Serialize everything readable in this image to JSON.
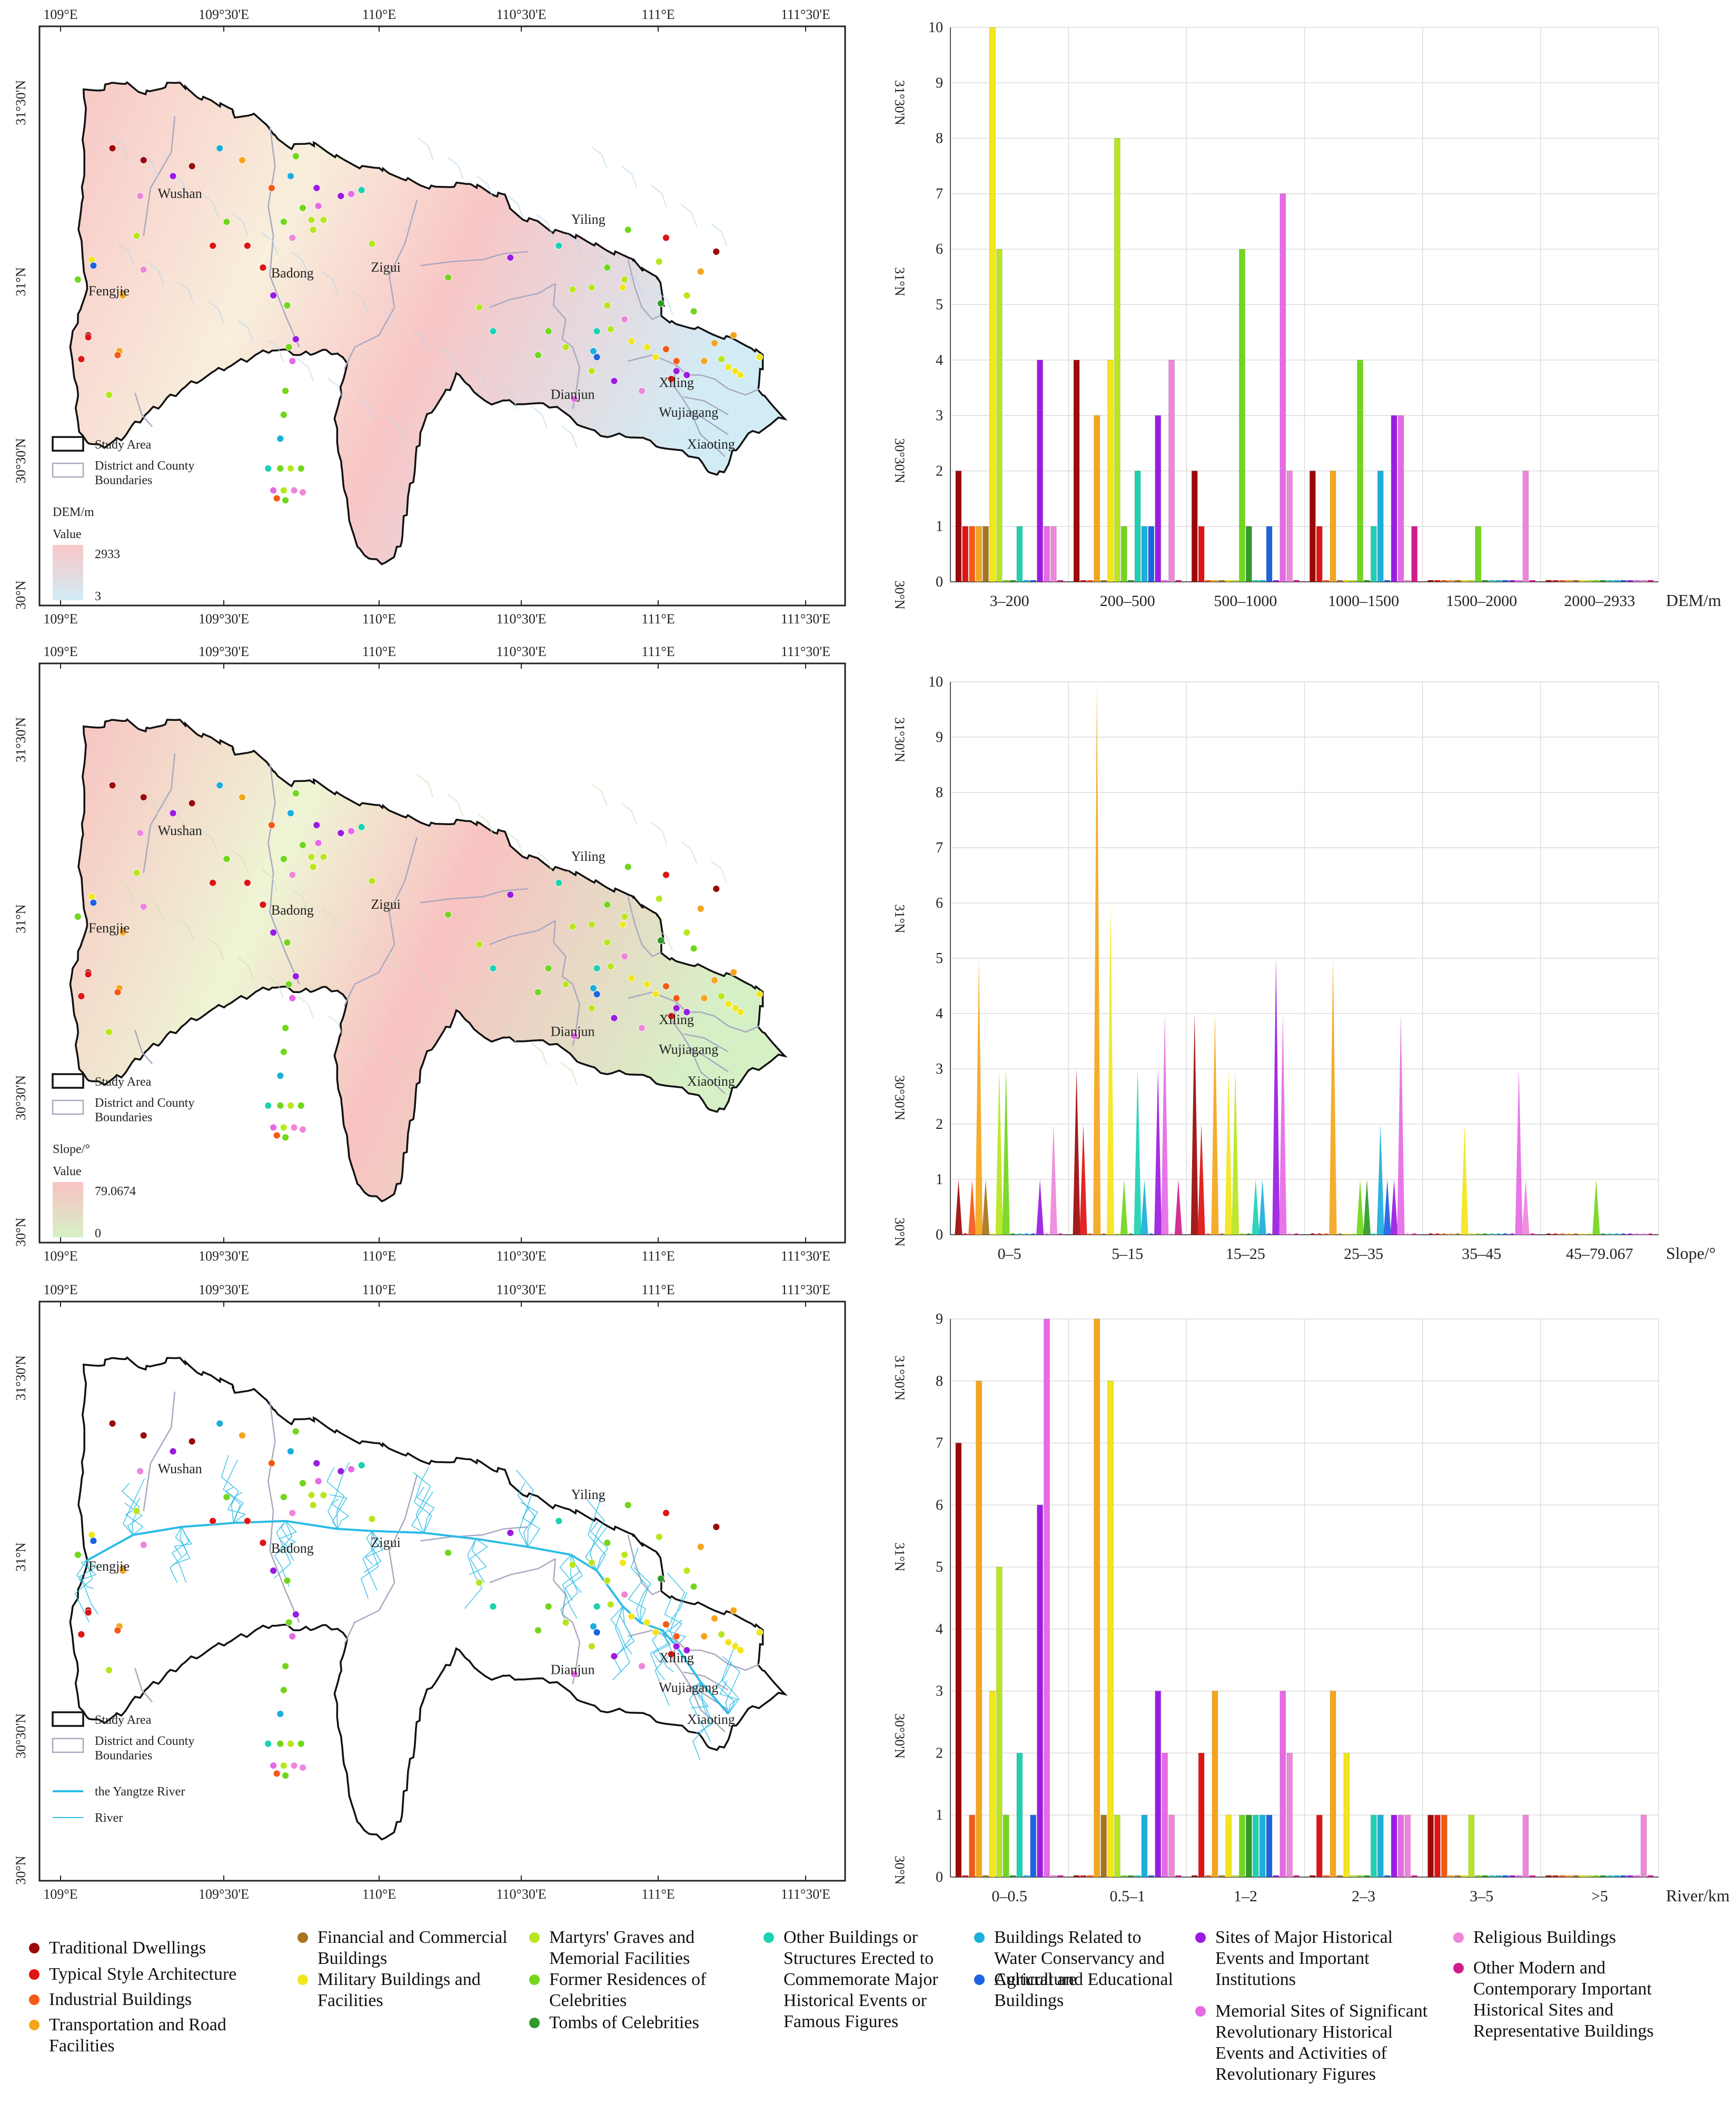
{
  "categories": [
    {
      "name": "Traditional Dwellings",
      "color": "#9b0a0a"
    },
    {
      "name": "Typical Style Architecture",
      "color": "#e01414"
    },
    {
      "name": "Industrial Buildings",
      "color": "#f45a14"
    },
    {
      "name": "Transportation and Road Facilities",
      "color": "#f5a51c"
    },
    {
      "name": "Financial and Commercial Buildings",
      "color": "#a8741c"
    },
    {
      "name": "Military Buildings and Facilities",
      "color": "#f2e61c"
    },
    {
      "name": "Martyrs' Graves and Memorial Facilities",
      "color": "#b8e61e"
    },
    {
      "name": "Former Residences of Celebrities",
      "color": "#72d61c"
    },
    {
      "name": "Tombs of Celebrities",
      "color": "#2f9a28"
    },
    {
      "name": "Other Buildings or Structures Erected to Commemorate Major Historical Events or Famous Figures",
      "color": "#1cd2b2"
    },
    {
      "name": "Buildings Related to Water Conservancy and Agriculture",
      "color": "#1caedc"
    },
    {
      "name": "Cultural and Educational Buildings",
      "color": "#1c62e2"
    },
    {
      "name": "Sites of Major Historical Events and Important Institutions",
      "color": "#9a1ce2"
    },
    {
      "name": "Memorial Sites of Significant Revolutionary Historical Events and Activities of Revolutionary Figures",
      "color": "#e66ae6"
    },
    {
      "name": "Religious Buildings",
      "color": "#ee86da"
    },
    {
      "name": "Other Modern and Contemporary Important Historical Sites and Representative Buildings",
      "color": "#d21c8c"
    }
  ],
  "maps": [
    {
      "top_ticks": [
        "109°E",
        "109°30'E",
        "110°E",
        "110°30'E",
        "111°E",
        "111°30'E"
      ],
      "bottom_ticks": [
        "109°E",
        "109°30'E",
        "110°E",
        "110°30'E",
        "111°E",
        "111°30'E"
      ],
      "side_ticks": [
        "31°30'N",
        "31°N",
        "30°30'N",
        "30°N"
      ],
      "places": [
        "Wushan",
        "Fengjie",
        "Badong",
        "Zigui",
        "Yiling",
        "Dianjun",
        "Xiling",
        "Wujiagang",
        "Xiaoting"
      ],
      "legend": {
        "study_area": "Study Area",
        "boundaries": "District and County Boundaries",
        "layer": "DEM/m",
        "value": "Value",
        "high": "2933",
        "low": "3"
      },
      "colors": {
        "high": "#f8c6c6",
        "low": "#d2ecf6",
        "fill": "#f8efdc"
      }
    },
    {
      "top_ticks": [
        "109°E",
        "109°30'E",
        "110°E",
        "110°30'E",
        "111°E",
        "111°30'E"
      ],
      "bottom_ticks": [
        "109°E",
        "109°30'E",
        "110°E",
        "110°30'E",
        "111°E",
        "111°30'E"
      ],
      "side_ticks": [
        "31°30'N",
        "31°N",
        "30°30'N",
        "30°N"
      ],
      "places": [
        "Wushan",
        "Fengjie",
        "Badong",
        "Zigui",
        "Yiling",
        "Dianjun",
        "Xiling",
        "Wujiagang",
        "Xiaoting"
      ],
      "legend": {
        "study_area": "Study Area",
        "boundaries": "District and County Boundaries",
        "layer": "Slope/°",
        "value": "Value",
        "high": "79.0674",
        "low": "0"
      },
      "colors": {
        "high": "#f8c2c2",
        "low": "#d6f0c6",
        "fill": "#eef5d4"
      }
    },
    {
      "top_ticks": [
        "109°E",
        "109°30'E",
        "110°E",
        "110°30'E",
        "111°E",
        "111°30'E"
      ],
      "bottom_ticks": [
        "109°E",
        "109°30'E",
        "110°E",
        "110°30'E",
        "111°E",
        "111°30'E"
      ],
      "side_ticks": [
        "31°30'N",
        "31°N",
        "30°30'N",
        "30°N"
      ],
      "places": [
        "Wushan",
        "Fengjie",
        "Badong",
        "Zigui",
        "Yiling",
        "Dianjun",
        "Xiling",
        "Wujiagang",
        "Xiaoting"
      ],
      "legend": {
        "study_area": "Study Area",
        "boundaries": "District and County Boundaries",
        "yangtze": "the Yangtze River",
        "river": "River"
      },
      "colors": {
        "fill": "#ffffff",
        "river": "#2bbce6"
      }
    }
  ],
  "chart_data": [
    {
      "type": "bar",
      "xlabel": "DEM/m",
      "ylim": [
        0,
        10
      ],
      "yticks": [
        0,
        1,
        2,
        3,
        4,
        5,
        6,
        7,
        8,
        9,
        10
      ],
      "categories": [
        "3–200",
        "200–500",
        "500–1000",
        "1000–1500",
        "1500–2000",
        "2000–2933"
      ],
      "values": [
        [
          2,
          1,
          1,
          1,
          1,
          10,
          6,
          0,
          0,
          1,
          0,
          0,
          4,
          1,
          1,
          0
        ],
        [
          4,
          0,
          0,
          3,
          0,
          4,
          8,
          1,
          0,
          2,
          1,
          1,
          3,
          0,
          4,
          0
        ],
        [
          2,
          1,
          0,
          0,
          0,
          0,
          0,
          6,
          1,
          0,
          0,
          1,
          0,
          7,
          2,
          0
        ],
        [
          2,
          1,
          0,
          2,
          0,
          0,
          0,
          4,
          0,
          1,
          2,
          0,
          3,
          3,
          0,
          1
        ],
        [
          0,
          0,
          0,
          0,
          0,
          0,
          0,
          1,
          0,
          0,
          0,
          0,
          0,
          0,
          2,
          0
        ],
        [
          0,
          0,
          0,
          0,
          0,
          0,
          0,
          0,
          0,
          0,
          0,
          0,
          0,
          0,
          0,
          0
        ]
      ]
    },
    {
      "type": "area",
      "xlabel": "Slope/°",
      "ylim": [
        0,
        10
      ],
      "yticks": [
        0,
        1,
        2,
        3,
        4,
        5,
        6,
        7,
        8,
        9,
        10
      ],
      "categories": [
        "0–5",
        "5–15",
        "15–25",
        "25–35",
        "35–45",
        "45–79.067"
      ],
      "values": [
        [
          1,
          0,
          1,
          5,
          1,
          0,
          3,
          3,
          0,
          0,
          0,
          0,
          1,
          0,
          2,
          0
        ],
        [
          3,
          2,
          0,
          10,
          0,
          6,
          0,
          1,
          0,
          3,
          1,
          0,
          3,
          4,
          0,
          1
        ],
        [
          4,
          2,
          0,
          4,
          0,
          3,
          3,
          0,
          0,
          1,
          1,
          0,
          5,
          4,
          0,
          0
        ],
        [
          0,
          0,
          0,
          5,
          0,
          0,
          0,
          1,
          1,
          0,
          2,
          1,
          1,
          4,
          0,
          0
        ],
        [
          0,
          0,
          0,
          0,
          0,
          2,
          0,
          0,
          0,
          0,
          0,
          0,
          0,
          3,
          1,
          0
        ],
        [
          0,
          0,
          0,
          0,
          0,
          0,
          0,
          1,
          0,
          0,
          0,
          0,
          0,
          0,
          0,
          0
        ]
      ]
    },
    {
      "type": "bar",
      "xlabel": "River/km",
      "ylim": [
        0,
        9
      ],
      "yticks": [
        0,
        1,
        2,
        3,
        4,
        5,
        6,
        7,
        8,
        9
      ],
      "categories": [
        "0–0.5",
        "0.5–1",
        "1–2",
        "2–3",
        "3–5",
        ">5"
      ],
      "values": [
        [
          7,
          0,
          1,
          8,
          0,
          3,
          5,
          1,
          0,
          2,
          0,
          1,
          6,
          9,
          0,
          0
        ],
        [
          0,
          0,
          0,
          9,
          1,
          8,
          1,
          0,
          0,
          0,
          1,
          0,
          3,
          2,
          1,
          0
        ],
        [
          0,
          2,
          0,
          3,
          0,
          1,
          0,
          1,
          1,
          1,
          1,
          1,
          0,
          3,
          2,
          0
        ],
        [
          0,
          1,
          0,
          3,
          0,
          2,
          0,
          0,
          0,
          1,
          1,
          0,
          1,
          1,
          1,
          0
        ],
        [
          1,
          1,
          1,
          0,
          0,
          0,
          1,
          0,
          0,
          0,
          0,
          0,
          0,
          0,
          1,
          0
        ],
        [
          0,
          0,
          0,
          0,
          0,
          0,
          0,
          0,
          0,
          0,
          0,
          0,
          0,
          0,
          1,
          0
        ]
      ]
    }
  ]
}
